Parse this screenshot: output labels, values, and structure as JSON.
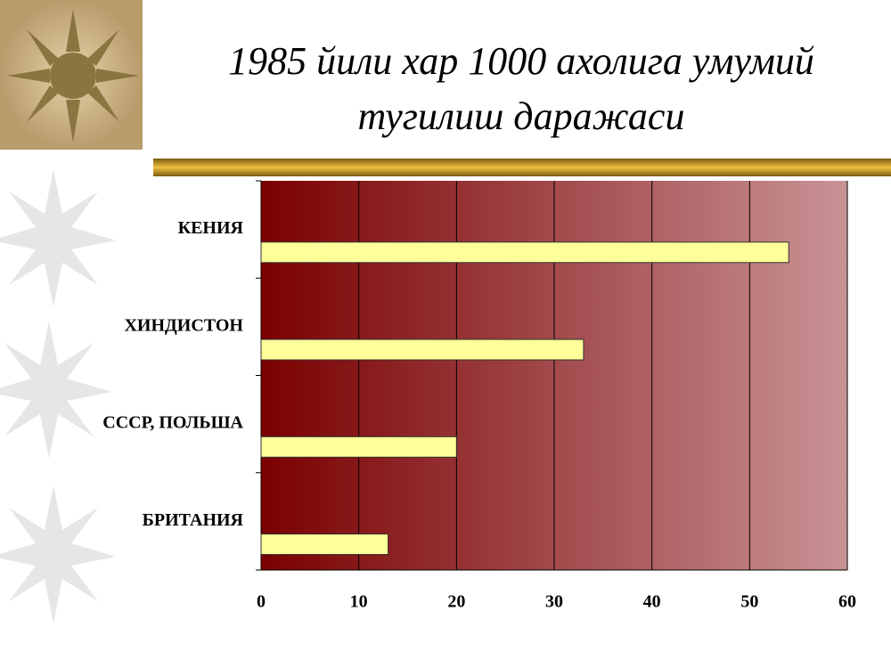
{
  "chart_data": {
    "type": "bar",
    "orientation": "horizontal",
    "title": "1985 йили  хар 1000 ахолига умумий\nтугилиш даражаси",
    "categories": [
      "КЕНИЯ",
      "ХИНДИСТОН",
      "СССР, ПОЛЬША",
      "БРИТАНИЯ"
    ],
    "values": [
      54,
      33,
      20,
      13
    ],
    "color": "#ffff99",
    "xlim": [
      0,
      60
    ],
    "xticks": [
      0,
      10,
      20,
      30,
      40,
      50,
      60
    ],
    "grid": true
  }
}
